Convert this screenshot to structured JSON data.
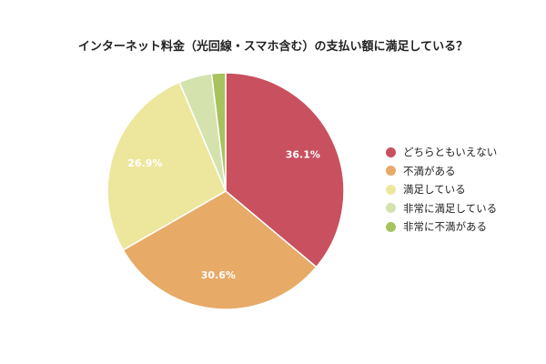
{
  "chart_data": {
    "type": "pie",
    "title": "インターネット料金（光回線・スマホ含む）の支払い額に満足している？",
    "categories": [
      "どちらともいえない",
      "不満がある",
      "満足している",
      "非常に満足している",
      "非常に不満がある"
    ],
    "values": [
      36.1,
      30.6,
      26.9,
      4.5,
      1.9
    ],
    "value_labels": [
      "36.1%",
      "30.6%",
      "26.9%",
      "",
      ""
    ],
    "colors": [
      "#c8505f",
      "#e7aa67",
      "#ede79e",
      "#d4e2ad",
      "#a7c35e"
    ],
    "start_angle": "12 o'clock",
    "direction": "clockwise",
    "legend_position": "right"
  }
}
